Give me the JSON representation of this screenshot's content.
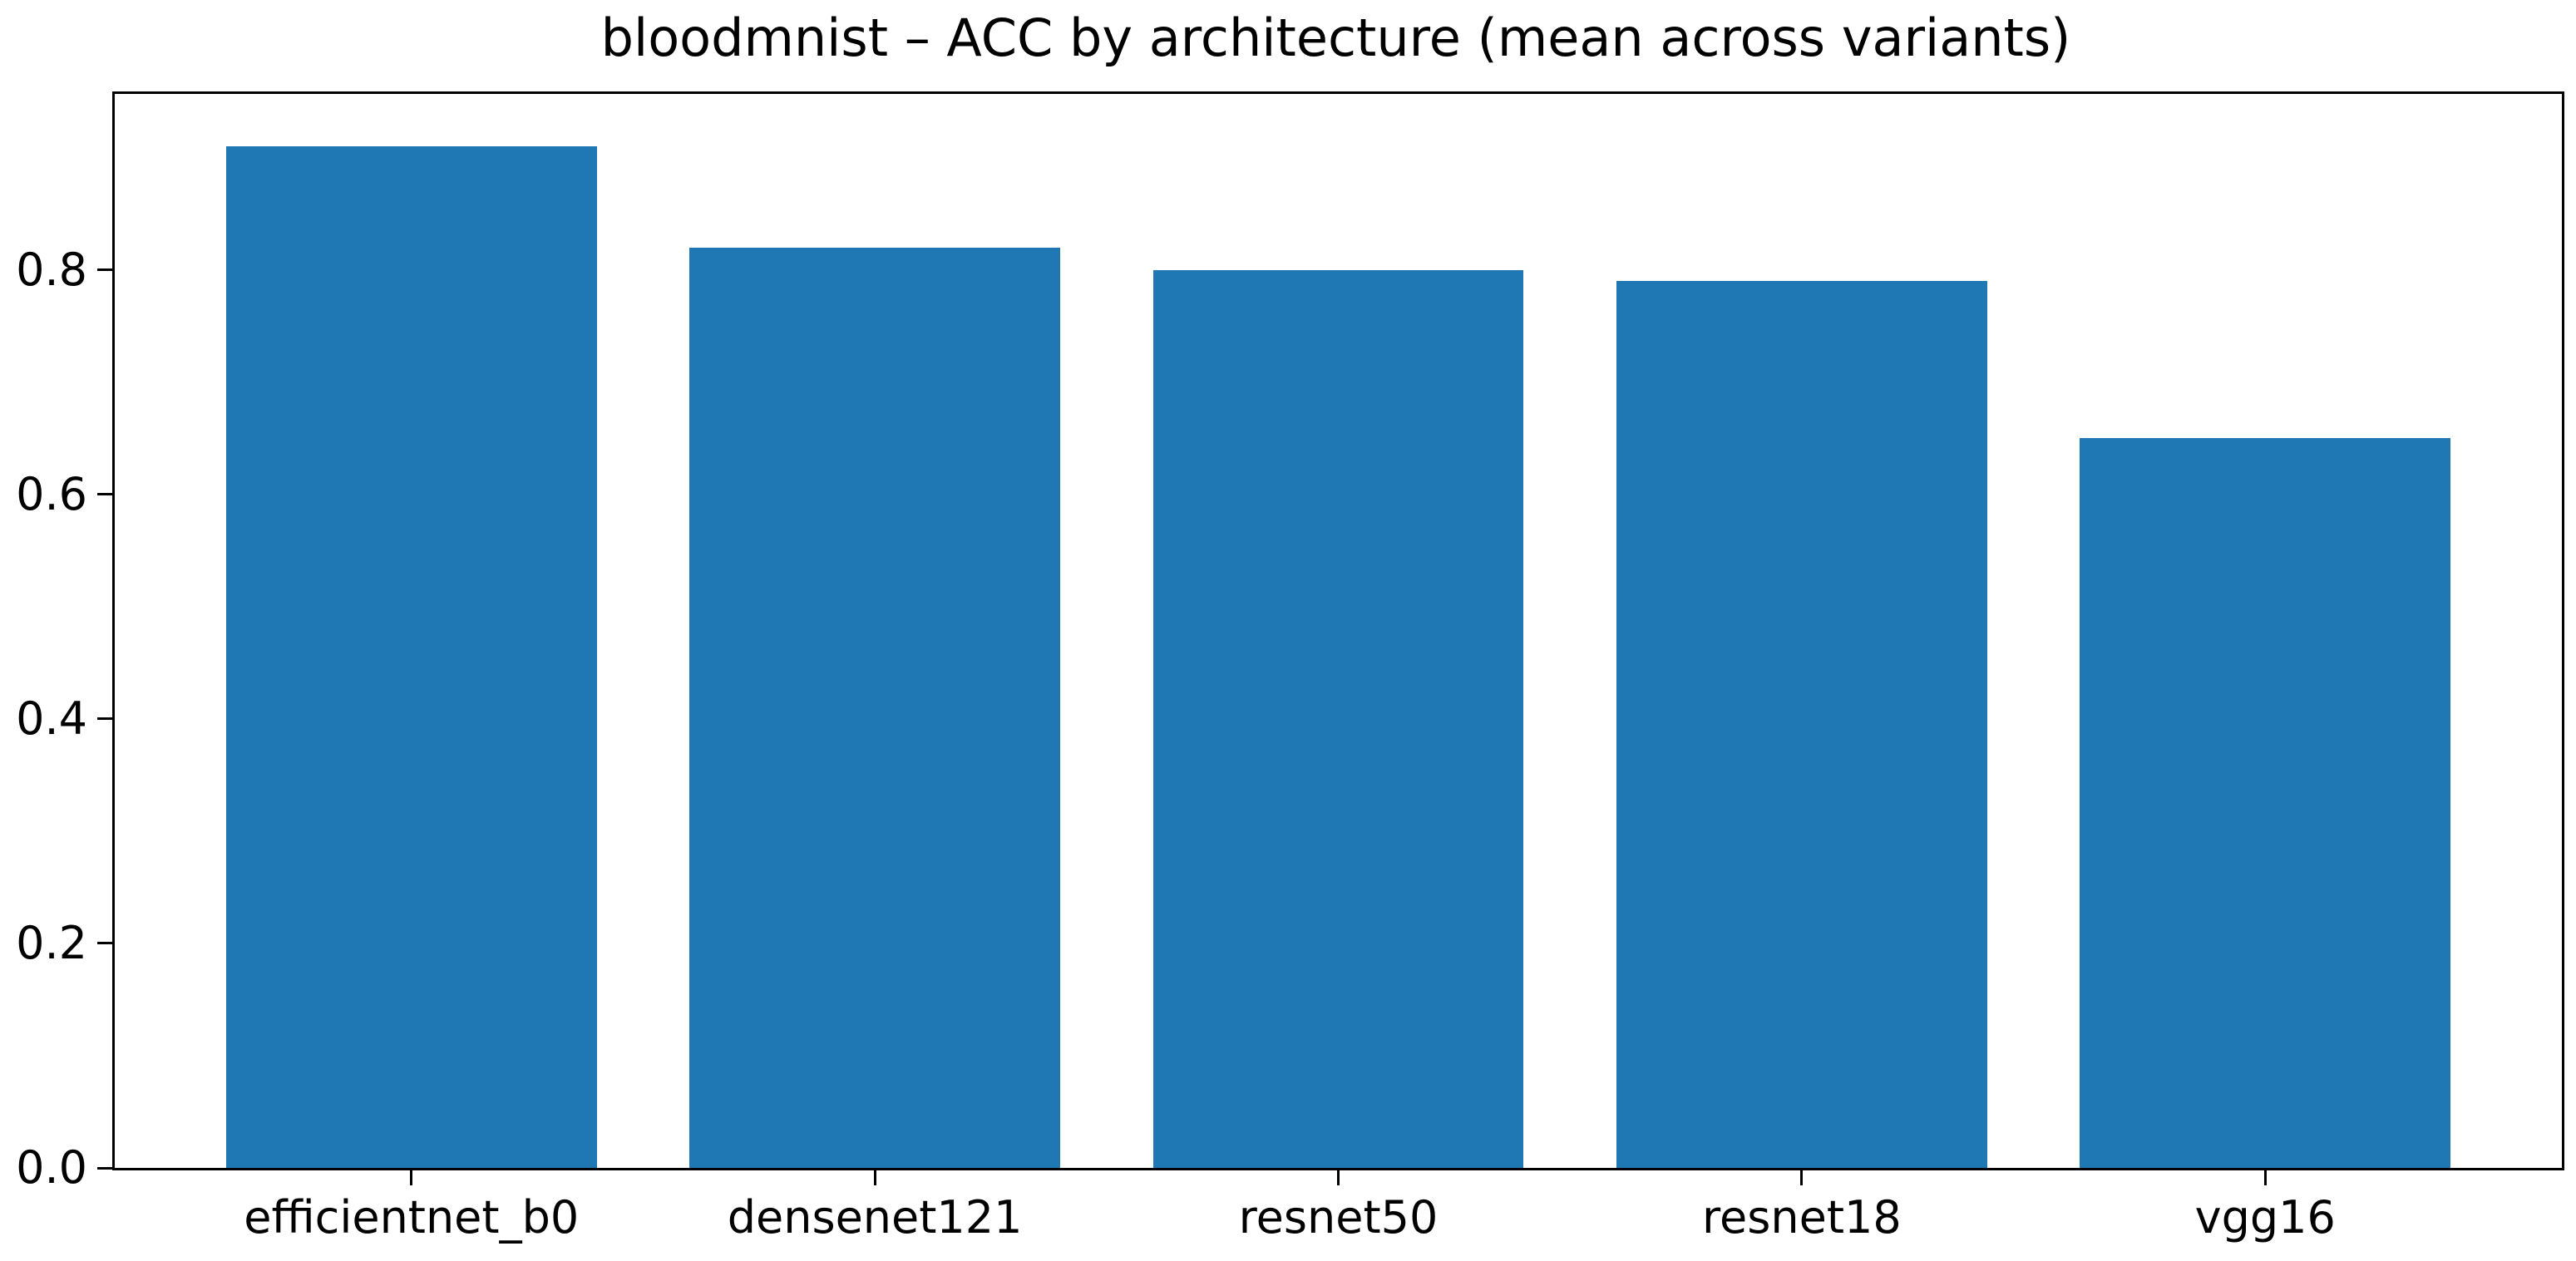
{
  "chart_data": {
    "type": "bar",
    "title": "bloodmnist – ACC by architecture (mean across variants)",
    "categories": [
      "efficientnet_b0",
      "densenet121",
      "resnet50",
      "resnet18",
      "vgg16"
    ],
    "values": [
      0.91,
      0.82,
      0.8,
      0.79,
      0.65
    ],
    "series": [
      {
        "name": "ACC (mean across variants)",
        "values": [
          0.91,
          0.82,
          0.8,
          0.79,
          0.65
        ]
      }
    ],
    "xlabel": "",
    "ylabel": "",
    "ylim": [
      0,
      0.957
    ],
    "yticks": [
      0.0,
      0.2,
      0.4,
      0.6,
      0.8
    ],
    "ytick_labels": [
      "0.0",
      "0.2",
      "0.4",
      "0.6",
      "0.8"
    ],
    "grid": false,
    "legend": "none",
    "bar_color": "#1f77b4",
    "text_color": "#000000",
    "background_color": "#ffffff"
  }
}
